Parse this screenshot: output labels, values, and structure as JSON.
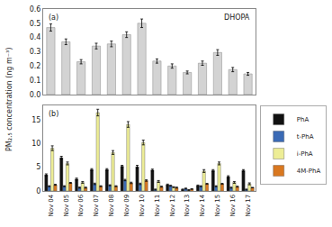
{
  "chart_data": [
    {
      "type": "bar",
      "ylabel": "PM₂.₅ concentration (ng m⁻³)",
      "annotations": [
        "(a)",
        "DHOPA"
      ],
      "categories": [
        "Nov 04",
        "Nov 05",
        "Nov 06",
        "Nov 07",
        "Nov 08",
        "Nov 09",
        "Nov 10",
        "Nov 11",
        "Nov 12",
        "Nov 13",
        "Nov 14",
        "Nov 15",
        "Nov 16",
        "Nov 17"
      ],
      "values": [
        0.47,
        0.37,
        0.23,
        0.34,
        0.355,
        0.42,
        0.5,
        0.235,
        0.2,
        0.155,
        0.22,
        0.295,
        0.175,
        0.145
      ],
      "errors": [
        0.025,
        0.02,
        0.015,
        0.02,
        0.02,
        0.02,
        0.03,
        0.015,
        0.015,
        0.01,
        0.015,
        0.02,
        0.015,
        0.01
      ],
      "color": "#d3d3d3",
      "ylim": [
        0.0,
        0.6
      ],
      "yticks": [
        {
          "value": 0.0,
          "label": "0.0"
        },
        0.1,
        0.2,
        0.3,
        0.4,
        0.5,
        0.6
      ],
      "grid": false,
      "tick_labels": "y"
    },
    {
      "type": "bar",
      "annotations": [
        "(b)"
      ],
      "categories": [
        "Nov 04",
        "Nov 05",
        "Nov 06",
        "Nov 07",
        "Nov 08",
        "Nov 09",
        "Nov 10",
        "Nov 11",
        "Nov 12",
        "Nov 13",
        "Nov 14",
        "Nov 15",
        "Nov 16",
        "Nov 17"
      ],
      "series": [
        {
          "name": "PhA",
          "color": "#111111",
          "values": [
            3.4,
            7.0,
            2.5,
            4.5,
            4.5,
            5.2,
            5.1,
            4.4,
            1.3,
            0.3,
            1.1,
            4.3,
            3.0,
            4.3
          ],
          "errors": [
            0.2,
            0.3,
            0.2,
            0.2,
            0.2,
            0.2,
            0.3,
            0.2,
            0.15,
            0.1,
            0.15,
            0.2,
            0.2,
            0.2
          ]
        },
        {
          "name": "t-PhA",
          "color": "#3a6ab5",
          "values": [
            1.0,
            1.0,
            0.7,
            1.5,
            1.2,
            2.3,
            1.5,
            0.3,
            1.1,
            0.5,
            1.0,
            1.0,
            0.7,
            0.3
          ],
          "errors": [
            0.1,
            0.1,
            0.1,
            0.15,
            0.1,
            0.15,
            0.15,
            0.1,
            0.1,
            0.1,
            0.1,
            0.1,
            0.1,
            0.1
          ]
        },
        {
          "name": "i-PhA",
          "color": "#eded96",
          "values": [
            9.0,
            5.8,
            1.8,
            16.5,
            8.1,
            14.0,
            10.2,
            2.0,
            0.8,
            0.2,
            4.2,
            5.8,
            1.8,
            1.5
          ],
          "errors": [
            0.5,
            0.3,
            0.2,
            0.7,
            0.4,
            0.6,
            0.5,
            0.2,
            0.1,
            0.1,
            0.3,
            0.3,
            0.2,
            0.2
          ]
        },
        {
          "name": "4M-PhA",
          "color": "#d97820",
          "values": [
            1.3,
            1.7,
            0.7,
            1.0,
            1.0,
            1.7,
            2.2,
            0.9,
            0.7,
            0.4,
            1.5,
            1.5,
            0.9,
            0.7
          ],
          "errors": [
            0.1,
            0.1,
            0.1,
            0.1,
            0.1,
            0.15,
            0.15,
            0.1,
            0.1,
            0.05,
            0.1,
            0.1,
            0.1,
            0.05
          ]
        }
      ],
      "ylim": [
        0,
        18
      ],
      "yticks": [
        0,
        5,
        10,
        15
      ],
      "grid": false,
      "legend": "upper right"
    }
  ]
}
